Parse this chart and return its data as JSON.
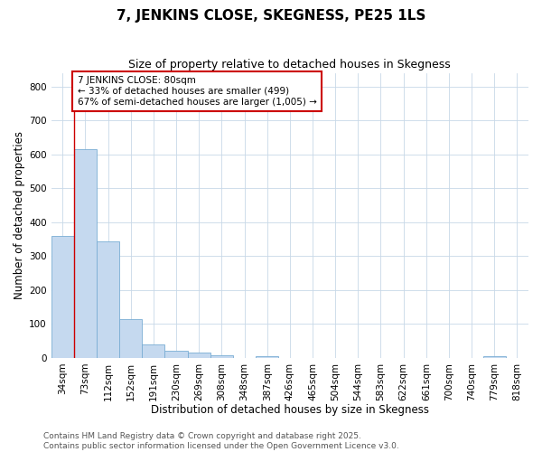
{
  "title": "7, JENKINS CLOSE, SKEGNESS, PE25 1LS",
  "subtitle": "Size of property relative to detached houses in Skegness",
  "xlabel": "Distribution of detached houses by size in Skegness",
  "ylabel": "Number of detached properties",
  "footnote1": "Contains HM Land Registry data © Crown copyright and database right 2025.",
  "footnote2": "Contains public sector information licensed under the Open Government Licence v3.0.",
  "categories": [
    "34sqm",
    "73sqm",
    "112sqm",
    "152sqm",
    "191sqm",
    "230sqm",
    "269sqm",
    "308sqm",
    "348sqm",
    "387sqm",
    "426sqm",
    "465sqm",
    "504sqm",
    "544sqm",
    "583sqm",
    "622sqm",
    "661sqm",
    "700sqm",
    "740sqm",
    "779sqm",
    "818sqm"
  ],
  "values": [
    360,
    615,
    343,
    115,
    40,
    20,
    15,
    8,
    0,
    5,
    0,
    0,
    0,
    0,
    0,
    0,
    0,
    0,
    0,
    5,
    0
  ],
  "bar_color": "#c5d9ef",
  "bar_edge_color": "#7aadd4",
  "red_line_index": 1,
  "annotation_text": "7 JENKINS CLOSE: 80sqm\n← 33% of detached houses are smaller (499)\n67% of semi-detached houses are larger (1,005) →",
  "annotation_box_color": "#ffffff",
  "annotation_box_edge": "#cc0000",
  "annotation_text_color": "#000000",
  "red_line_color": "#cc0000",
  "ylim": [
    0,
    840
  ],
  "yticks": [
    0,
    100,
    200,
    300,
    400,
    500,
    600,
    700,
    800
  ],
  "background_color": "#ffffff",
  "grid_color": "#c8d8e8",
  "title_fontsize": 11,
  "subtitle_fontsize": 9,
  "axis_label_fontsize": 8.5,
  "tick_fontsize": 7.5,
  "annotation_fontsize": 7.5,
  "footnote_fontsize": 6.5
}
